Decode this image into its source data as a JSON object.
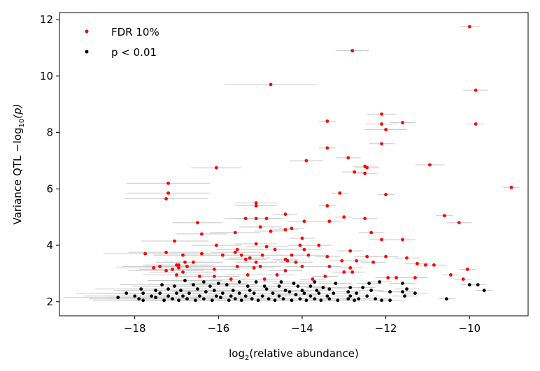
{
  "chart_data": {
    "type": "scatter",
    "xlabel": {
      "prefix": "log",
      "sub": "2",
      "suffix": "(relative abundance)"
    },
    "ylabel": {
      "prefix": "Variance QTL −log",
      "sub": "10",
      "suffix": "(p)"
    },
    "xlim": [
      -19.8,
      -8.6
    ],
    "ylim": [
      1.5,
      12.25
    ],
    "xticks": [
      -18,
      -16,
      -14,
      -12,
      -10
    ],
    "yticks": [
      2,
      4,
      6,
      8,
      10,
      12
    ],
    "xtick_labels": [
      "−18",
      "−16",
      "−14",
      "−12",
      "−10"
    ],
    "ytick_labels": [
      "2",
      "4",
      "6",
      "8",
      "10",
      "12"
    ],
    "grid": false,
    "legend_position": "top-left",
    "error_bar_color": "#c8c8c8",
    "series": [
      {
        "name": "FDR 10%",
        "color": "#ff0000",
        "points": [
          [
            -10.0,
            11.75,
            0.25
          ],
          [
            -12.8,
            10.9,
            0.4
          ],
          [
            -9.85,
            9.5,
            0.3
          ],
          [
            -14.75,
            9.7,
            1.1
          ],
          [
            -9.85,
            8.3,
            0.2
          ],
          [
            -12.1,
            8.65,
            0.35
          ],
          [
            -11.6,
            8.35,
            0.3
          ],
          [
            -13.4,
            8.4,
            0.2
          ],
          [
            -12.1,
            8.3,
            0.4
          ],
          [
            -12.0,
            8.1,
            0.5
          ],
          [
            -12.1,
            7.6,
            0.3
          ],
          [
            -13.4,
            7.45,
            0.2
          ],
          [
            -12.9,
            7.1,
            0.3
          ],
          [
            -13.9,
            7.0,
            0.4
          ],
          [
            -10.95,
            6.85,
            0.35
          ],
          [
            -16.05,
            6.75,
            0.6
          ],
          [
            -12.5,
            6.8,
            0.3
          ],
          [
            -12.45,
            6.75,
            0.3
          ],
          [
            -12.75,
            6.6,
            0.3
          ],
          [
            -12.5,
            6.55,
            0.3
          ],
          [
            -17.2,
            6.2,
            1.0
          ],
          [
            -9.0,
            6.05,
            0.2
          ],
          [
            -17.2,
            5.85,
            1.0
          ],
          [
            -17.25,
            5.65,
            1.0
          ],
          [
            -13.1,
            5.85,
            0.2
          ],
          [
            -12.0,
            5.8,
            0.2
          ],
          [
            -15.1,
            5.5,
            0.5
          ],
          [
            -15.1,
            5.4,
            0.5
          ],
          [
            -13.4,
            5.4,
            0.2
          ],
          [
            -14.4,
            5.1,
            0.3
          ],
          [
            -10.6,
            5.05,
            0.2
          ],
          [
            -13.0,
            5.0,
            0.2
          ],
          [
            -12.5,
            4.95,
            0.3
          ],
          [
            -14.85,
            4.95,
            0.4
          ],
          [
            -15.35,
            4.95,
            0.5
          ],
          [
            -15.1,
            4.95,
            0.5
          ],
          [
            -13.35,
            4.85,
            0.3
          ],
          [
            -13.95,
            4.85,
            0.4
          ],
          [
            -10.25,
            4.8,
            0.3
          ],
          [
            -16.5,
            4.8,
            0.6
          ],
          [
            -15.0,
            4.65,
            0.5
          ],
          [
            -14.75,
            4.5,
            0.4
          ],
          [
            -14.4,
            4.55,
            0.3
          ],
          [
            -14.25,
            4.6,
            0.3
          ],
          [
            -12.35,
            4.45,
            0.3
          ],
          [
            -15.6,
            4.45,
            0.6
          ],
          [
            -16.4,
            4.4,
            0.6
          ],
          [
            -11.6,
            4.2,
            0.3
          ],
          [
            -12.1,
            4.2,
            0.3
          ],
          [
            -14.0,
            4.25,
            0.3
          ],
          [
            -17.05,
            4.15,
            0.8
          ],
          [
            -16.05,
            4.0,
            0.6
          ],
          [
            -15.1,
            4.05,
            0.5
          ],
          [
            -14.85,
            3.95,
            0.5
          ],
          [
            -14.65,
            3.85,
            0.4
          ],
          [
            -14.05,
            4.0,
            0.3
          ],
          [
            -13.6,
            4.0,
            0.3
          ],
          [
            -13.95,
            3.85,
            0.4
          ],
          [
            -12.85,
            3.8,
            0.3
          ],
          [
            -15.55,
            3.85,
            0.5
          ],
          [
            -15.6,
            3.75,
            0.6
          ],
          [
            -17.25,
            3.75,
            0.9
          ],
          [
            -17.75,
            3.7,
            1.0
          ],
          [
            -16.85,
            3.65,
            0.7
          ],
          [
            -16.4,
            3.7,
            0.6
          ],
          [
            -15.9,
            3.65,
            0.5
          ],
          [
            -15.45,
            3.65,
            0.5
          ],
          [
            -14.95,
            3.65,
            0.5
          ],
          [
            -14.25,
            3.65,
            0.3
          ],
          [
            -13.85,
            3.65,
            0.4
          ],
          [
            -13.4,
            3.6,
            0.3
          ],
          [
            -12.45,
            3.6,
            0.3
          ],
          [
            -12.0,
            3.6,
            0.3
          ],
          [
            -11.5,
            3.55,
            0.3
          ],
          [
            -15.25,
            3.55,
            0.5
          ],
          [
            -15.35,
            3.5,
            0.5
          ],
          [
            -14.4,
            3.5,
            0.3
          ],
          [
            -14.35,
            3.45,
            0.3
          ],
          [
            -12.7,
            3.45,
            0.3
          ],
          [
            -13.05,
            3.45,
            0.3
          ],
          [
            -16.6,
            3.4,
            0.7
          ],
          [
            -16.8,
            3.4,
            0.7
          ],
          [
            -15.1,
            3.4,
            0.5
          ],
          [
            -14.15,
            3.4,
            0.4
          ],
          [
            -12.3,
            3.4,
            0.3
          ],
          [
            -11.25,
            3.35,
            0.3
          ],
          [
            -11.05,
            3.3,
            0.3
          ],
          [
            -10.85,
            3.3,
            0.3
          ],
          [
            -17.0,
            3.3,
            0.8
          ],
          [
            -16.95,
            3.3,
            0.8
          ],
          [
            -16.75,
            3.25,
            0.7
          ],
          [
            -17.4,
            3.25,
            0.9
          ],
          [
            -15.55,
            3.25,
            0.5
          ],
          [
            -15.0,
            3.25,
            0.5
          ],
          [
            -15.15,
            3.2,
            0.5
          ],
          [
            -14.0,
            3.25,
            0.4
          ],
          [
            -13.35,
            3.25,
            0.3
          ],
          [
            -12.85,
            3.2,
            0.3
          ],
          [
            -17.55,
            3.2,
            0.9
          ],
          [
            -16.95,
            3.2,
            0.8
          ],
          [
            -17.1,
            3.15,
            0.8
          ],
          [
            -16.1,
            3.15,
            0.6
          ],
          [
            -10.05,
            3.15,
            0.2
          ],
          [
            -17.25,
            3.1,
            0.9
          ],
          [
            -16.85,
            3.05,
            0.8
          ],
          [
            -13.0,
            3.05,
            0.3
          ],
          [
            -12.8,
            3.05,
            0.3
          ],
          [
            -14.4,
            3.1,
            0.4
          ],
          [
            -17.0,
            2.95,
            0.8
          ],
          [
            -16.45,
            2.9,
            0.6
          ],
          [
            -16.1,
            2.9,
            0.6
          ],
          [
            -15.3,
            2.95,
            0.5
          ],
          [
            -14.6,
            2.95,
            0.4
          ],
          [
            -13.45,
            2.9,
            0.3
          ],
          [
            -10.45,
            2.95,
            0.2
          ],
          [
            -11.3,
            2.85,
            0.3
          ],
          [
            -15.7,
            2.8,
            0.5
          ],
          [
            -14.9,
            2.8,
            0.4
          ],
          [
            -13.75,
            2.8,
            0.3
          ],
          [
            -11.75,
            2.85,
            0.3
          ],
          [
            -11.95,
            2.85,
            0.3
          ],
          [
            -10.15,
            2.8,
            0.2
          ]
        ]
      },
      {
        "name": "p < 0.01",
        "color": "#000000",
        "points": [
          [
            -16.8,
            2.75,
            0.9
          ],
          [
            -16.35,
            2.7,
            0.8
          ],
          [
            -16.0,
            2.65,
            0.7
          ],
          [
            -15.5,
            2.7,
            0.6
          ],
          [
            -15.1,
            2.7,
            0.6
          ],
          [
            -14.5,
            2.7,
            0.5
          ],
          [
            -14.2,
            2.65,
            0.5
          ],
          [
            -13.7,
            2.7,
            0.4
          ],
          [
            -13.2,
            2.65,
            0.4
          ],
          [
            -12.4,
            2.65,
            0.3
          ],
          [
            -12.15,
            2.7,
            0.3
          ],
          [
            -11.6,
            2.65,
            0.3
          ],
          [
            -10.0,
            2.6,
            0.2
          ],
          [
            -9.8,
            2.6,
            0.2
          ],
          [
            -9.65,
            2.4,
            0.2
          ],
          [
            -17.35,
            2.6,
            1.0
          ],
          [
            -17.05,
            2.55,
            1.0
          ],
          [
            -16.6,
            2.6,
            0.8
          ],
          [
            -16.2,
            2.55,
            0.7
          ],
          [
            -15.8,
            2.6,
            0.7
          ],
          [
            -15.3,
            2.55,
            0.6
          ],
          [
            -14.9,
            2.55,
            0.6
          ],
          [
            -14.55,
            2.55,
            0.5
          ],
          [
            -14.1,
            2.55,
            0.5
          ],
          [
            -13.8,
            2.55,
            0.4
          ],
          [
            -13.5,
            2.5,
            0.4
          ],
          [
            -12.85,
            2.5,
            0.3
          ],
          [
            -12.55,
            2.5,
            0.3
          ],
          [
            -11.5,
            2.45,
            0.3
          ],
          [
            -17.85,
            2.45,
            1.1
          ],
          [
            -17.5,
            2.4,
            1.0
          ],
          [
            -17.2,
            2.45,
            1.0
          ],
          [
            -16.9,
            2.4,
            0.9
          ],
          [
            -16.5,
            2.45,
            0.8
          ],
          [
            -16.1,
            2.4,
            0.7
          ],
          [
            -15.65,
            2.4,
            0.7
          ],
          [
            -15.25,
            2.4,
            0.6
          ],
          [
            -14.85,
            2.45,
            0.6
          ],
          [
            -14.4,
            2.4,
            0.5
          ],
          [
            -14.0,
            2.4,
            0.5
          ],
          [
            -13.65,
            2.4,
            0.4
          ],
          [
            -13.35,
            2.45,
            0.4
          ],
          [
            -12.9,
            2.35,
            0.3
          ],
          [
            -12.35,
            2.4,
            0.3
          ],
          [
            -11.9,
            2.35,
            0.3
          ],
          [
            -11.6,
            2.35,
            0.3
          ],
          [
            -18.2,
            2.3,
            1.2
          ],
          [
            -17.8,
            2.3,
            1.1
          ],
          [
            -17.4,
            2.3,
            1.0
          ],
          [
            -17.0,
            2.3,
            1.0
          ],
          [
            -16.7,
            2.3,
            0.9
          ],
          [
            -16.3,
            2.35,
            0.8
          ],
          [
            -15.9,
            2.3,
            0.7
          ],
          [
            -15.5,
            2.3,
            0.7
          ],
          [
            -15.15,
            2.3,
            0.6
          ],
          [
            -14.7,
            2.3,
            0.6
          ],
          [
            -14.3,
            2.35,
            0.5
          ],
          [
            -13.95,
            2.3,
            0.5
          ],
          [
            -13.6,
            2.3,
            0.4
          ],
          [
            -13.25,
            2.3,
            0.4
          ],
          [
            -12.7,
            2.3,
            0.3
          ],
          [
            -11.3,
            2.3,
            0.3
          ],
          [
            -18.0,
            2.2,
            1.2
          ],
          [
            -17.6,
            2.2,
            1.1
          ],
          [
            -17.2,
            2.2,
            1.0
          ],
          [
            -16.85,
            2.2,
            0.9
          ],
          [
            -16.45,
            2.2,
            0.8
          ],
          [
            -16.05,
            2.2,
            0.8
          ],
          [
            -15.7,
            2.2,
            0.7
          ],
          [
            -15.35,
            2.2,
            0.7
          ],
          [
            -14.95,
            2.2,
            0.6
          ],
          [
            -14.55,
            2.2,
            0.5
          ],
          [
            -14.15,
            2.25,
            0.5
          ],
          [
            -13.8,
            2.2,
            0.4
          ],
          [
            -13.4,
            2.2,
            0.4
          ],
          [
            -12.85,
            2.2,
            0.3
          ],
          [
            -12.45,
            2.2,
            0.3
          ],
          [
            -11.55,
            2.2,
            0.3
          ],
          [
            -18.4,
            2.15,
            1.3
          ],
          [
            -17.9,
            2.1,
            1.2
          ],
          [
            -17.5,
            2.15,
            1.1
          ],
          [
            -17.1,
            2.1,
            1.0
          ],
          [
            -16.75,
            2.1,
            0.9
          ],
          [
            -16.35,
            2.1,
            0.8
          ],
          [
            -15.95,
            2.15,
            0.8
          ],
          [
            -15.6,
            2.1,
            0.7
          ],
          [
            -15.2,
            2.1,
            0.7
          ],
          [
            -14.8,
            2.1,
            0.6
          ],
          [
            -14.45,
            2.1,
            0.5
          ],
          [
            -14.05,
            2.1,
            0.5
          ],
          [
            -13.7,
            2.1,
            0.4
          ],
          [
            -13.35,
            2.1,
            0.4
          ],
          [
            -12.9,
            2.1,
            0.3
          ],
          [
            -12.65,
            2.1,
            0.3
          ],
          [
            -12.1,
            2.05,
            0.3
          ],
          [
            -11.9,
            2.05,
            0.3
          ],
          [
            -10.55,
            2.1,
            0.2
          ],
          [
            -17.8,
            2.05,
            1.2
          ],
          [
            -17.3,
            2.05,
            1.1
          ],
          [
            -16.95,
            2.05,
            1.0
          ],
          [
            -16.55,
            2.05,
            0.9
          ],
          [
            -16.15,
            2.05,
            0.8
          ],
          [
            -15.75,
            2.05,
            0.8
          ],
          [
            -15.45,
            2.05,
            0.7
          ],
          [
            -15.05,
            2.05,
            0.7
          ],
          [
            -14.65,
            2.05,
            0.6
          ],
          [
            -14.25,
            2.05,
            0.5
          ],
          [
            -13.9,
            2.05,
            0.5
          ],
          [
            -13.55,
            2.05,
            0.4
          ],
          [
            -13.15,
            2.05,
            0.4
          ],
          [
            -12.75,
            2.05,
            0.3
          ],
          [
            -12.25,
            2.1,
            0.3
          ]
        ]
      }
    ]
  }
}
